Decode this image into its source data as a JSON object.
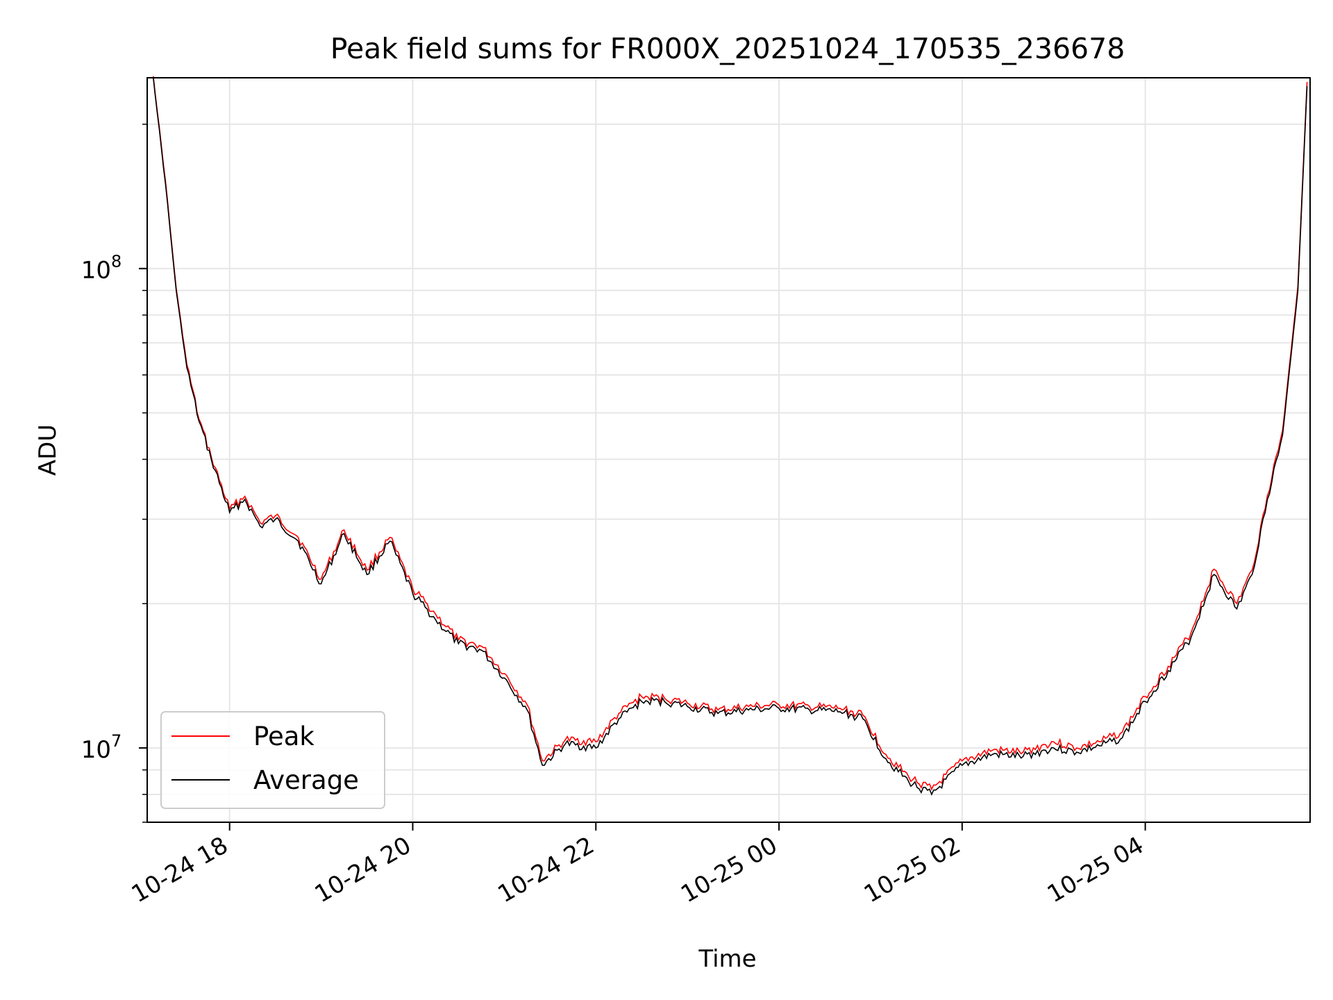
{
  "chart_data": {
    "type": "line",
    "title": "Peak field sums for FR000X_20251024_170535_236678",
    "xlabel": "Time",
    "ylabel": "ADU",
    "yscale": "log",
    "xlim": [
      "2025-10-24 17:06",
      "2025-10-25 05:48"
    ],
    "ylim": [
      7000000,
      250000000
    ],
    "x_ticks": [
      "10-24 18",
      "10-24 20",
      "10-24 22",
      "10-25 00",
      "10-25 02",
      "10-25 04"
    ],
    "y_ticks": [
      {
        "value": 10000000,
        "base": "10",
        "exp": "7"
      },
      {
        "value": 100000000,
        "base": "10",
        "exp": "8"
      }
    ],
    "grid": true,
    "legend": {
      "position": "lower left"
    },
    "series": [
      {
        "name": "Peak",
        "color": "#ff0000"
      },
      {
        "name": "Average",
        "color": "#000000"
      }
    ],
    "x": [
      "2025-10-24 17:10",
      "2025-10-24 17:18",
      "2025-10-24 17:25",
      "2025-10-24 17:32",
      "2025-10-24 17:40",
      "2025-10-24 17:48",
      "2025-10-24 18:00",
      "2025-10-24 18:10",
      "2025-10-24 18:20",
      "2025-10-24 18:30",
      "2025-10-24 18:45",
      "2025-10-24 19:00",
      "2025-10-24 19:15",
      "2025-10-24 19:30",
      "2025-10-24 19:45",
      "2025-10-24 20:00",
      "2025-10-24 20:15",
      "2025-10-24 20:30",
      "2025-10-24 20:45",
      "2025-10-24 21:00",
      "2025-10-24 21:15",
      "2025-10-24 21:25",
      "2025-10-24 21:40",
      "2025-10-24 22:00",
      "2025-10-24 22:15",
      "2025-10-24 22:30",
      "2025-10-24 22:45",
      "2025-10-24 23:00",
      "2025-10-24 23:20",
      "2025-10-24 23:40",
      "2025-10-25 00:00",
      "2025-10-25 00:20",
      "2025-10-25 00:40",
      "2025-10-25 00:55",
      "2025-10-25 01:10",
      "2025-10-25 01:25",
      "2025-10-25 01:40",
      "2025-10-25 02:00",
      "2025-10-25 02:20",
      "2025-10-25 02:40",
      "2025-10-25 03:00",
      "2025-10-25 03:15",
      "2025-10-25 03:30",
      "2025-10-25 03:45",
      "2025-10-25 04:00",
      "2025-10-25 04:15",
      "2025-10-25 04:30",
      "2025-10-25 04:45",
      "2025-10-25 05:00",
      "2025-10-25 05:10",
      "2025-10-25 05:20",
      "2025-10-25 05:30",
      "2025-10-25 05:40",
      "2025-10-25 05:46"
    ],
    "average": [
      250000000,
      150000000,
      90000000,
      62000000,
      48000000,
      40000000,
      31000000,
      33000000,
      29000000,
      30000000,
      27000000,
      22000000,
      28000000,
      23000000,
      27000000,
      21000000,
      18500000,
      16500000,
      16000000,
      14000000,
      12000000,
      9200000,
      10200000,
      10000000,
      11500000,
      12500000,
      12500000,
      12200000,
      11800000,
      12000000,
      12100000,
      12000000,
      11900000,
      11500000,
      9500000,
      8500000,
      8000000,
      9200000,
      9700000,
      9600000,
      10000000,
      9800000,
      10100000,
      10500000,
      12500000,
      14500000,
      17000000,
      23000000,
      19500000,
      23000000,
      33000000,
      45000000,
      90000000,
      240000000
    ],
    "peak": [
      252000000,
      152000000,
      91000000,
      63000000,
      48500000,
      40500000,
      31500000,
      33500000,
      29500000,
      30500000,
      27500000,
      22500000,
      28500000,
      23500000,
      27500000,
      21500000,
      19000000,
      16800000,
      16300000,
      14300000,
      12300000,
      9400000,
      10400000,
      10300000,
      11800000,
      12800000,
      12700000,
      12400000,
      12000000,
      12200000,
      12300000,
      12200000,
      12100000,
      11700000,
      9700000,
      8700000,
      8200000,
      9400000,
      9900000,
      9800000,
      10300000,
      10000000,
      10300000,
      10800000,
      12800000,
      14800000,
      17400000,
      23600000,
      20000000,
      23500000,
      33600000,
      46000000,
      92000000,
      245000000
    ]
  }
}
